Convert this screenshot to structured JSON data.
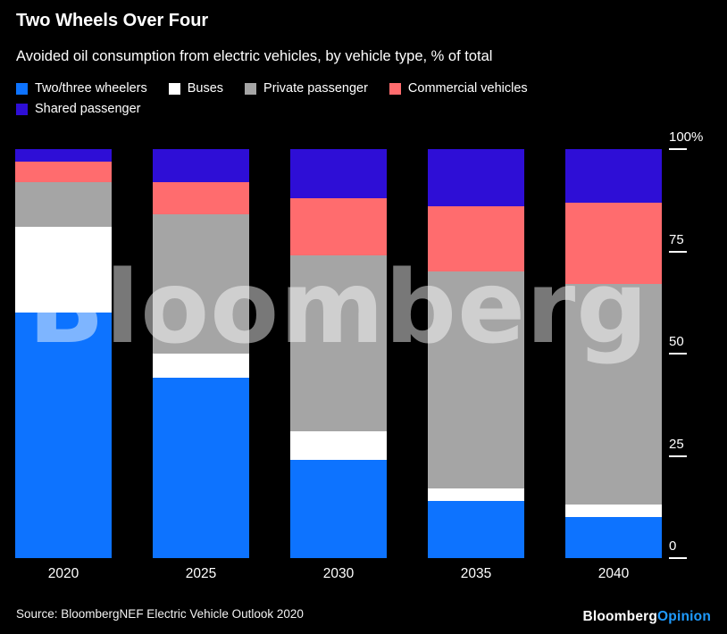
{
  "header": {
    "title": "Two Wheels Over Four",
    "subtitle": "Avoided oil consumption from electric vehicles, by vehicle type, % of total"
  },
  "chart_data": {
    "type": "bar",
    "stacked": true,
    "categories": [
      "2020",
      "2025",
      "2030",
      "2035",
      "2040"
    ],
    "series": [
      {
        "name": "Two/three wheelers",
        "color": "#0d73ff",
        "values": [
          60,
          44,
          24,
          14,
          10
        ]
      },
      {
        "name": "Buses",
        "color": "#ffffff",
        "values": [
          21,
          6,
          7,
          3,
          3
        ]
      },
      {
        "name": "Private passenger",
        "color": "#a5a5a5",
        "values": [
          11,
          34,
          43,
          53,
          54
        ]
      },
      {
        "name": "Commercial vehicles",
        "color": "#ff6c6e",
        "values": [
          5,
          8,
          14,
          16,
          20
        ]
      },
      {
        "name": "Shared passenger",
        "color": "#2e0ed6",
        "values": [
          3,
          8,
          12,
          14,
          13
        ]
      }
    ],
    "ylim": [
      0,
      100
    ],
    "yticks": [
      {
        "label": "100%",
        "value": 100
      },
      {
        "label": "75",
        "value": 75
      },
      {
        "label": "50",
        "value": 50
      },
      {
        "label": "25",
        "value": 25
      },
      {
        "label": "0",
        "value": 0
      }
    ],
    "legend_position": "top",
    "grid": false,
    "watermark": "Bloomberg",
    "background": "#000000"
  },
  "footer": {
    "source": "Source: BloombergNEF Electric Vehicle Outlook 2020",
    "brand": "Bloomberg",
    "brand_suffix": "Opinion",
    "brand_suffix_color": "#1f9bff"
  }
}
